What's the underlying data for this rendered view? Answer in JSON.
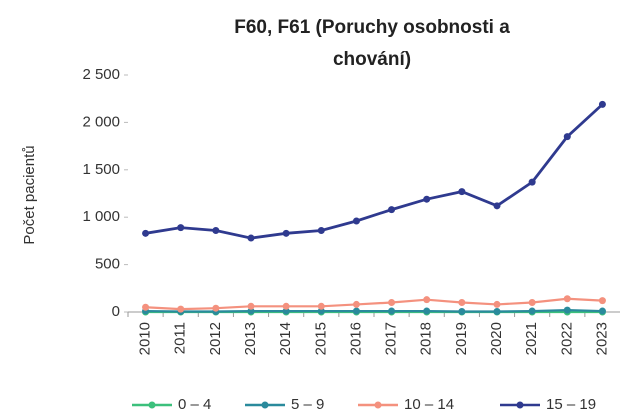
{
  "chart_data": {
    "type": "line",
    "title": [
      "F60, F61 (Poruchy osobnosti a",
      "chování)"
    ],
    "y_label": "Počet pacientů",
    "categories": [
      "2010",
      "2011",
      "2012",
      "2013",
      "2014",
      "2015",
      "2016",
      "2017",
      "2018",
      "2019",
      "2020",
      "2021",
      "2022",
      "2023"
    ],
    "series": [
      {
        "name": "0 – 4",
        "color": "#3cc07c",
        "values": [
          0,
          0,
          0,
          0,
          0,
          0,
          0,
          0,
          0,
          0,
          0,
          0,
          0,
          0
        ]
      },
      {
        "name": "5 – 9",
        "color": "#2a8a9c",
        "values": [
          10,
          5,
          5,
          10,
          10,
          10,
          10,
          10,
          10,
          5,
          5,
          10,
          20,
          10
        ]
      },
      {
        "name": "10 – 14",
        "color": "#f4917e",
        "values": [
          50,
          30,
          40,
          60,
          60,
          60,
          80,
          100,
          130,
          100,
          80,
          100,
          140,
          120
        ]
      },
      {
        "name": "15 – 19",
        "color": "#2f3a8f",
        "values": [
          830,
          890,
          860,
          780,
          830,
          860,
          960,
          1080,
          1190,
          1270,
          1120,
          1370,
          1850,
          2190
        ]
      }
    ],
    "ylim": [
      0,
      2500
    ],
    "yticks": [
      0,
      500,
      {
        "value": 1000,
        "label": "1 000"
      },
      {
        "value": 1500,
        "label": "1 500"
      },
      {
        "value": 2000,
        "label": "2 000"
      },
      {
        "value": 2500,
        "label": "2 500"
      }
    ],
    "grid": false,
    "legend": "bottom"
  }
}
